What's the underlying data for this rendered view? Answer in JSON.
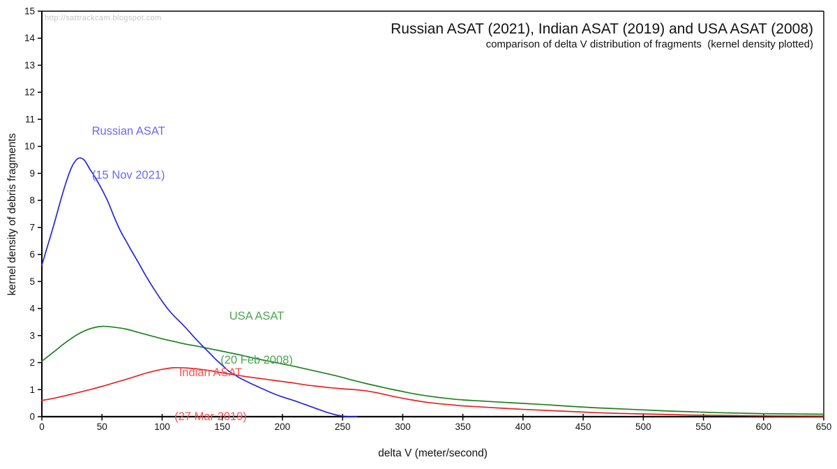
{
  "watermark": "http://sattrackcam.blogspot.com",
  "title": "Russian ASAT (2021), Indian ASAT (2019) and USA ASAT (2008)",
  "subtitle": "comparison of delta V distribution of fragments  (kernel density plotted)",
  "axes": {
    "x": {
      "label": "delta V (meter/second)",
      "min": 0,
      "max": 650,
      "ticks": [
        0,
        50,
        100,
        150,
        200,
        250,
        300,
        350,
        400,
        450,
        500,
        550,
        600,
        650
      ]
    },
    "y": {
      "label": "kernel density of debris fragments",
      "min": 0,
      "max": 15,
      "ticks": [
        0,
        1,
        2,
        3,
        4,
        5,
        6,
        7,
        8,
        9,
        10,
        11,
        12,
        13,
        14,
        15
      ]
    }
  },
  "colors": {
    "axis": "#000000",
    "tick_text": "#111111",
    "watermark": "#c4c4c4"
  },
  "chart_data": {
    "type": "line",
    "title": "Russian ASAT (2021), Indian ASAT (2019) and USA ASAT (2008)",
    "subtitle": "comparison of delta V distribution of fragments  (kernel density plotted)",
    "xlabel": "delta V (meter/second)",
    "ylabel": "kernel density of debris fragments",
    "xlim": [
      0,
      650
    ],
    "ylim": [
      0,
      15
    ],
    "grid": false,
    "legend_position": "inline-annotations",
    "series": [
      {
        "name": "USA ASAT",
        "label_lines": [
          "USA ASAT",
          "(20 Feb 2008)"
        ],
        "color": "#1e821e",
        "label_color": "#4fa44f",
        "label_pos": {
          "v": 178.6,
          "d": 2.89
        },
        "points": [
          [
            0,
            2.05
          ],
          [
            10,
            2.4
          ],
          [
            20,
            2.75
          ],
          [
            30,
            3.05
          ],
          [
            40,
            3.25
          ],
          [
            50,
            3.34
          ],
          [
            60,
            3.31
          ],
          [
            70,
            3.24
          ],
          [
            80,
            3.12
          ],
          [
            90,
            3.0
          ],
          [
            100,
            2.88
          ],
          [
            110,
            2.78
          ],
          [
            120,
            2.68
          ],
          [
            130,
            2.6
          ],
          [
            140,
            2.51
          ],
          [
            150,
            2.42
          ],
          [
            160,
            2.33
          ],
          [
            170,
            2.23
          ],
          [
            180,
            2.13
          ],
          [
            190,
            2.04
          ],
          [
            200,
            1.95
          ],
          [
            210,
            1.86
          ],
          [
            220,
            1.76
          ],
          [
            230,
            1.66
          ],
          [
            240,
            1.56
          ],
          [
            250,
            1.45
          ],
          [
            260,
            1.33
          ],
          [
            270,
            1.22
          ],
          [
            280,
            1.12
          ],
          [
            290,
            1.02
          ],
          [
            300,
            0.93
          ],
          [
            310,
            0.84
          ],
          [
            320,
            0.77
          ],
          [
            330,
            0.71
          ],
          [
            340,
            0.66
          ],
          [
            350,
            0.62
          ],
          [
            365,
            0.58
          ],
          [
            380,
            0.54
          ],
          [
            400,
            0.49
          ],
          [
            420,
            0.44
          ],
          [
            440,
            0.38
          ],
          [
            460,
            0.33
          ],
          [
            480,
            0.29
          ],
          [
            500,
            0.25
          ],
          [
            520,
            0.21
          ],
          [
            540,
            0.18
          ],
          [
            560,
            0.15
          ],
          [
            580,
            0.13
          ],
          [
            600,
            0.11
          ],
          [
            625,
            0.1
          ],
          [
            650,
            0.09
          ]
        ]
      },
      {
        "name": "Indian ASAT",
        "label_lines": [
          "Indian ASAT",
          "(27 Mar 2019)"
        ],
        "color": "#e32424",
        "label_color": "#f85454",
        "label_pos": {
          "v": 140.3,
          "d": 0.8
        },
        "points": [
          [
            0,
            0.6
          ],
          [
            10,
            0.68
          ],
          [
            20,
            0.78
          ],
          [
            30,
            0.89
          ],
          [
            40,
            1.0
          ],
          [
            50,
            1.12
          ],
          [
            60,
            1.25
          ],
          [
            70,
            1.38
          ],
          [
            80,
            1.52
          ],
          [
            90,
            1.65
          ],
          [
            100,
            1.75
          ],
          [
            110,
            1.81
          ],
          [
            120,
            1.8
          ],
          [
            130,
            1.76
          ],
          [
            140,
            1.7
          ],
          [
            150,
            1.62
          ],
          [
            160,
            1.55
          ],
          [
            170,
            1.48
          ],
          [
            180,
            1.42
          ],
          [
            190,
            1.36
          ],
          [
            200,
            1.3
          ],
          [
            210,
            1.24
          ],
          [
            220,
            1.17
          ],
          [
            230,
            1.12
          ],
          [
            240,
            1.07
          ],
          [
            250,
            1.03
          ],
          [
            260,
            1.0
          ],
          [
            270,
            0.95
          ],
          [
            280,
            0.87
          ],
          [
            290,
            0.77
          ],
          [
            300,
            0.68
          ],
          [
            310,
            0.6
          ],
          [
            320,
            0.53
          ],
          [
            330,
            0.48
          ],
          [
            340,
            0.44
          ],
          [
            350,
            0.4
          ],
          [
            365,
            0.36
          ],
          [
            380,
            0.32
          ],
          [
            400,
            0.27
          ],
          [
            420,
            0.23
          ],
          [
            440,
            0.19
          ],
          [
            460,
            0.15
          ],
          [
            480,
            0.12
          ],
          [
            500,
            0.1
          ],
          [
            520,
            0.08
          ],
          [
            540,
            0.06
          ],
          [
            560,
            0.05
          ],
          [
            580,
            0.04
          ],
          [
            600,
            0.03
          ],
          [
            625,
            0.025
          ],
          [
            650,
            0.02
          ]
        ]
      },
      {
        "name": "Russian ASAT",
        "label_lines": [
          "Russian ASAT",
          "(15 Nov 2021)"
        ],
        "color": "#2626d8",
        "label_color": "#6969f8",
        "label_pos": {
          "v": 72,
          "d": 9.73
        },
        "points": [
          [
            0,
            5.6
          ],
          [
            5,
            6.35
          ],
          [
            10,
            7.1
          ],
          [
            15,
            7.9
          ],
          [
            20,
            8.65
          ],
          [
            25,
            9.25
          ],
          [
            30,
            9.55
          ],
          [
            35,
            9.5
          ],
          [
            40,
            9.15
          ],
          [
            45,
            8.8
          ],
          [
            50,
            8.4
          ],
          [
            55,
            7.95
          ],
          [
            60,
            7.4
          ],
          [
            65,
            6.9
          ],
          [
            70,
            6.5
          ],
          [
            75,
            6.1
          ],
          [
            80,
            5.72
          ],
          [
            85,
            5.32
          ],
          [
            90,
            4.95
          ],
          [
            95,
            4.6
          ],
          [
            100,
            4.27
          ],
          [
            105,
            3.97
          ],
          [
            110,
            3.72
          ],
          [
            115,
            3.5
          ],
          [
            120,
            3.27
          ],
          [
            125,
            3.02
          ],
          [
            130,
            2.78
          ],
          [
            135,
            2.55
          ],
          [
            140,
            2.33
          ],
          [
            145,
            2.1
          ],
          [
            150,
            1.9
          ],
          [
            155,
            1.7
          ],
          [
            160,
            1.55
          ],
          [
            165,
            1.42
          ],
          [
            170,
            1.31
          ],
          [
            175,
            1.2
          ],
          [
            180,
            1.1
          ],
          [
            185,
            1.0
          ],
          [
            190,
            0.9
          ],
          [
            195,
            0.81
          ],
          [
            200,
            0.73
          ],
          [
            205,
            0.66
          ],
          [
            210,
            0.59
          ],
          [
            215,
            0.51
          ],
          [
            220,
            0.43
          ],
          [
            225,
            0.35
          ],
          [
            230,
            0.27
          ],
          [
            235,
            0.19
          ],
          [
            240,
            0.12
          ],
          [
            245,
            0.06
          ],
          [
            250,
            0.02
          ],
          [
            255,
            0.005
          ],
          [
            262,
            0
          ]
        ]
      }
    ]
  }
}
